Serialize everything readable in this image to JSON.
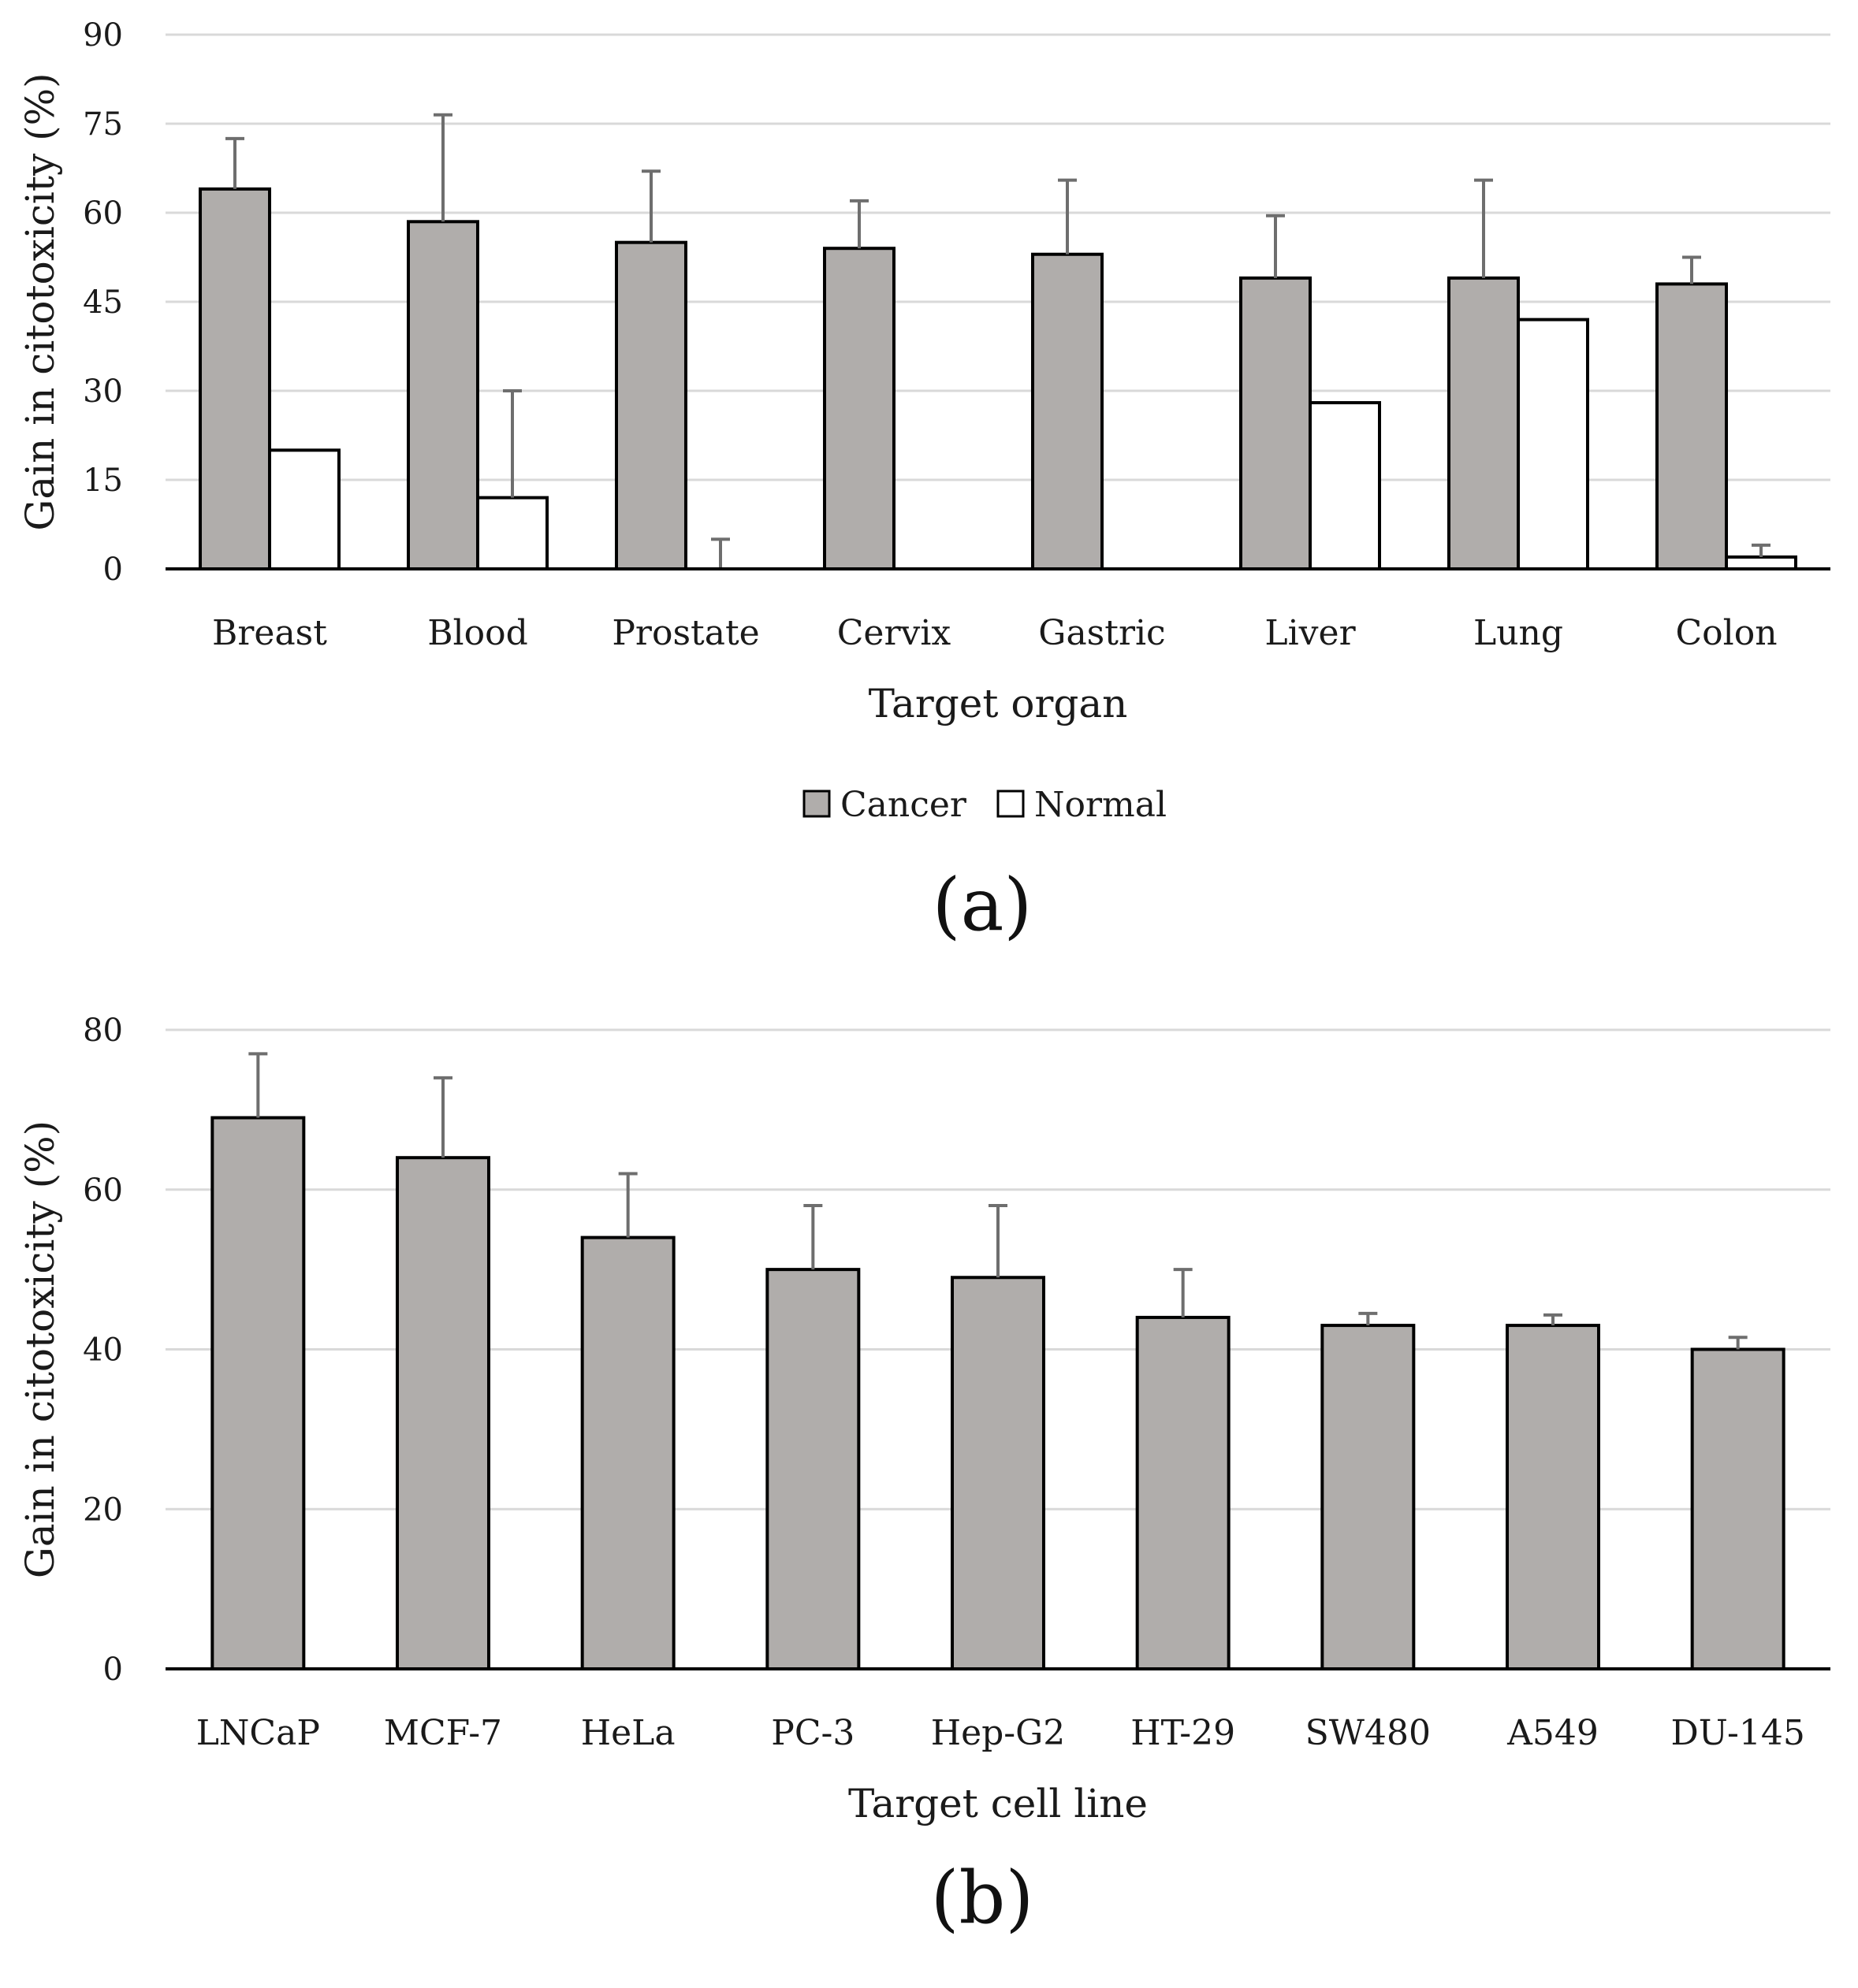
{
  "colors": {
    "cancer": "#b0adab",
    "normal": "#ffffff",
    "outline": "#000000",
    "errorbar": "#6e6e6e",
    "grid": "#d9d9d9"
  },
  "chart_data": [
    {
      "type": "bar",
      "panel_label": "(a)",
      "xlabel": "Target organ",
      "ylabel": "Gain in citotoxicity (%)",
      "ylim": [
        0,
        90
      ],
      "yticks": [
        0,
        15,
        30,
        45,
        60,
        75,
        90
      ],
      "grid": true,
      "legend_position": "bottom-center",
      "categories": [
        "Breast",
        "Blood",
        "Prostate",
        "Cervix",
        "Gastric",
        "Liver",
        "Lung",
        "Colon"
      ],
      "series": [
        {
          "name": "Cancer",
          "values": [
            64,
            58.5,
            55,
            54,
            53,
            49,
            49,
            48
          ],
          "error_upper": [
            72.5,
            76.5,
            67,
            62,
            65.5,
            59.5,
            65.5,
            52.5
          ]
        },
        {
          "name": "Normal",
          "values": [
            20,
            12,
            0,
            0,
            0,
            28,
            42,
            2
          ],
          "error_upper": [
            null,
            30,
            5,
            null,
            null,
            null,
            null,
            4
          ]
        }
      ]
    },
    {
      "type": "bar",
      "panel_label": "(b)",
      "xlabel": "Target cell line",
      "ylabel": "Gain in citotoxicity (%)",
      "ylim": [
        0,
        80
      ],
      "yticks": [
        0,
        20,
        40,
        60,
        80
      ],
      "grid": true,
      "categories": [
        "LNCaP",
        "MCF-7",
        "HeLa",
        "PC-3",
        "Hep-G2",
        "HT-29",
        "SW480",
        "A549",
        "DU-145"
      ],
      "series": [
        {
          "name": "Cancer",
          "values": [
            69,
            64,
            54,
            50,
            49,
            44,
            43,
            43,
            40
          ],
          "error_upper": [
            77,
            74,
            62,
            58,
            58,
            50,
            44.5,
            44.3,
            41.5
          ]
        }
      ]
    }
  ]
}
